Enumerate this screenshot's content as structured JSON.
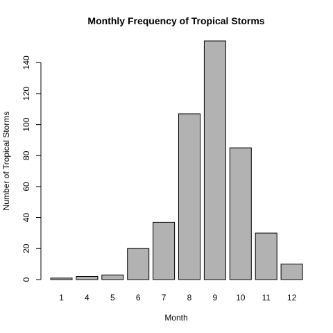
{
  "chart_data": {
    "type": "bar",
    "title": "Monthly Frequency of Tropical Storms",
    "xlabel": "Month",
    "ylabel": "Number of Tropical Storms",
    "categories": [
      "1",
      "4",
      "5",
      "6",
      "7",
      "8",
      "9",
      "10",
      "11",
      "12"
    ],
    "values": [
      1,
      2,
      3,
      20,
      37,
      107,
      154,
      85,
      30,
      10
    ],
    "ylim": [
      0,
      150
    ],
    "yticks": [
      0,
      20,
      40,
      60,
      80,
      100,
      120,
      140
    ],
    "grid": false,
    "colors": {
      "bar_fill": "#b2b2b2",
      "bar_stroke": "#000000"
    }
  }
}
